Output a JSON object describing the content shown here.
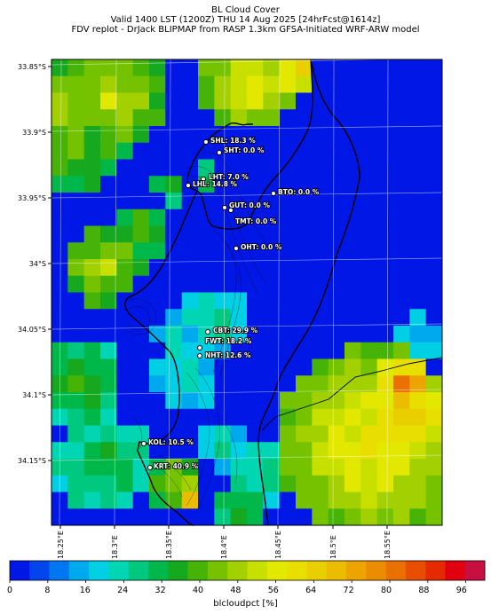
{
  "header": {
    "line1": "BL Cloud Cover",
    "line2": "Valid 1400 LST (1200Z) THU 14 Aug 2025 [24hrFcst@1614z]",
    "line3": "FDV replot - DrJack BLIPMAP from RASP 1.3km GFSA-Initiated WRF-ARW model"
  },
  "axes": {
    "y_ticks": [
      "33.85°S",
      "33.9°S",
      "33.95°S",
      "34°S",
      "34.05°S",
      "34.1°S",
      "34.15°S"
    ],
    "x_ticks": [
      "18.25°E",
      "18.3°E",
      "18.35°E",
      "18.4°E",
      "18.45°E",
      "18.5°E",
      "18.55°E"
    ]
  },
  "stations": [
    {
      "label": "SHL: 18.3 %",
      "value": 18.3
    },
    {
      "label": "SHT: 0.0 %",
      "value": 0.0
    },
    {
      "label": "LHT: 7.0 %",
      "value": 7.0
    },
    {
      "label": "LHL: 14.8 %",
      "value": 14.8
    },
    {
      "label": "BTO: 0.0 %",
      "value": 0.0
    },
    {
      "label": "GUT: 0.0 %",
      "value": 0.0
    },
    {
      "label": "TMT: 0.0 %",
      "value": 0.0
    },
    {
      "label": "OHT: 0.0 %",
      "value": 0.0
    },
    {
      "label": "CBT: 29.9 %",
      "value": 29.9
    },
    {
      "label": "FWT: 18.2 %",
      "value": 18.2
    },
    {
      "label": "NHT: 12.6 %",
      "value": 12.6
    },
    {
      "label": "KOL: 10.5 %",
      "value": 10.5
    },
    {
      "label": "KRT: 40.9 %",
      "value": 40.9
    }
  ],
  "colorbar": {
    "label": "blcloudpct [%]",
    "ticks": [
      "0",
      "8",
      "16",
      "24",
      "32",
      "40",
      "48",
      "56",
      "64",
      "72",
      "80",
      "88",
      "96"
    ],
    "min": 0,
    "max": 100,
    "colors": [
      "#0017e6",
      "#0046ec",
      "#0076f0",
      "#00a9ee",
      "#00cfe4",
      "#00d6b4",
      "#00c87f",
      "#00b84a",
      "#16a81e",
      "#46b406",
      "#75c300",
      "#a2d000",
      "#c8e000",
      "#e2e800",
      "#e8df00",
      "#eacf00",
      "#ecbc00",
      "#eca500",
      "#ec8d00",
      "#ea7000",
      "#e84e00",
      "#e52900",
      "#e00010",
      "#c81040"
    ]
  }
}
